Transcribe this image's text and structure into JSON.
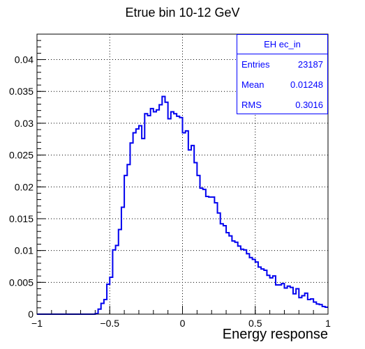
{
  "chart_data": {
    "type": "histogram",
    "title": "Etrue bin 10-12 GeV",
    "xlabel": "Energy response",
    "ylabel": "",
    "xlim": [
      -1,
      1
    ],
    "ylim": [
      0,
      0.044
    ],
    "bin_width": 0.02,
    "x_ticks": [
      "−1",
      "−0.5",
      "0",
      "0.5",
      "1"
    ],
    "x_tick_values": [
      -1,
      -0.5,
      0,
      0.5,
      1
    ],
    "y_ticks": [
      "0",
      "0.005",
      "0.01",
      "0.015",
      "0.02",
      "0.025",
      "0.03",
      "0.035",
      "0.04"
    ],
    "y_tick_values": [
      0,
      0.005,
      0.01,
      0.015,
      0.02,
      0.025,
      0.03,
      0.035,
      0.04
    ],
    "grid": true,
    "line_color": "#0000ee",
    "bin_left_edges": [
      -1.0,
      -0.98,
      -0.96,
      -0.94,
      -0.92,
      -0.9,
      -0.88,
      -0.86,
      -0.84,
      -0.82,
      -0.8,
      -0.78,
      -0.76,
      -0.74,
      -0.72,
      -0.7,
      -0.68,
      -0.66,
      -0.64,
      -0.62,
      -0.6,
      -0.58,
      -0.56,
      -0.54,
      -0.52,
      -0.5,
      -0.48,
      -0.46,
      -0.44,
      -0.42,
      -0.4,
      -0.38,
      -0.36,
      -0.34,
      -0.32,
      -0.3,
      -0.28,
      -0.26,
      -0.24,
      -0.22,
      -0.2,
      -0.18,
      -0.16,
      -0.14,
      -0.12,
      -0.1,
      -0.08,
      -0.06,
      -0.04,
      -0.02,
      0.0,
      0.02,
      0.04,
      0.06,
      0.08,
      0.1,
      0.12,
      0.14,
      0.16,
      0.18,
      0.2,
      0.22,
      0.24,
      0.26,
      0.28,
      0.3,
      0.32,
      0.34,
      0.36,
      0.38,
      0.4,
      0.42,
      0.44,
      0.46,
      0.48,
      0.5,
      0.52,
      0.54,
      0.56,
      0.58,
      0.6,
      0.62,
      0.64,
      0.66,
      0.68,
      0.7,
      0.72,
      0.74,
      0.76,
      0.78,
      0.8,
      0.82,
      0.84,
      0.86,
      0.88,
      0.9,
      0.92,
      0.94,
      0.96,
      0.98
    ],
    "values": [
      0.0,
      0.0,
      0.0,
      0.0,
      0.0,
      0.0,
      0.0,
      0.0,
      0.0,
      0.0,
      0.0,
      0.0,
      0.0,
      0.0,
      0.0,
      0.0,
      0.0,
      0.0,
      0.0,
      0.0,
      0.0001,
      0.0008,
      0.0017,
      0.0023,
      0.0047,
      0.0058,
      0.0101,
      0.0108,
      0.0133,
      0.0168,
      0.0218,
      0.0235,
      0.0269,
      0.0285,
      0.0291,
      0.0296,
      0.0276,
      0.0315,
      0.0312,
      0.0323,
      0.0318,
      0.0321,
      0.0329,
      0.0342,
      0.0333,
      0.0307,
      0.0318,
      0.0315,
      0.0311,
      0.0309,
      0.0285,
      0.0288,
      0.0258,
      0.0265,
      0.0238,
      0.0218,
      0.0198,
      0.0196,
      0.0185,
      0.0184,
      0.0184,
      0.0175,
      0.0159,
      0.0142,
      0.0139,
      0.0128,
      0.0123,
      0.0115,
      0.0113,
      0.0107,
      0.0102,
      0.0101,
      0.0095,
      0.0089,
      0.0086,
      0.0082,
      0.0074,
      0.0071,
      0.0069,
      0.0061,
      0.0057,
      0.006,
      0.0046,
      0.0046,
      0.0048,
      0.0041,
      0.0044,
      0.0042,
      0.0032,
      0.004,
      0.0026,
      0.0029,
      0.0033,
      0.0023,
      0.0024,
      0.0019,
      0.0016,
      0.0015,
      0.0012,
      0.0011
    ]
  },
  "stats": {
    "title": "EH ec_in",
    "rows": [
      {
        "label": "Entries",
        "value": "23187"
      },
      {
        "label": "Mean",
        "value": "0.01248"
      },
      {
        "label": "RMS",
        "value": "0.3016"
      }
    ]
  }
}
